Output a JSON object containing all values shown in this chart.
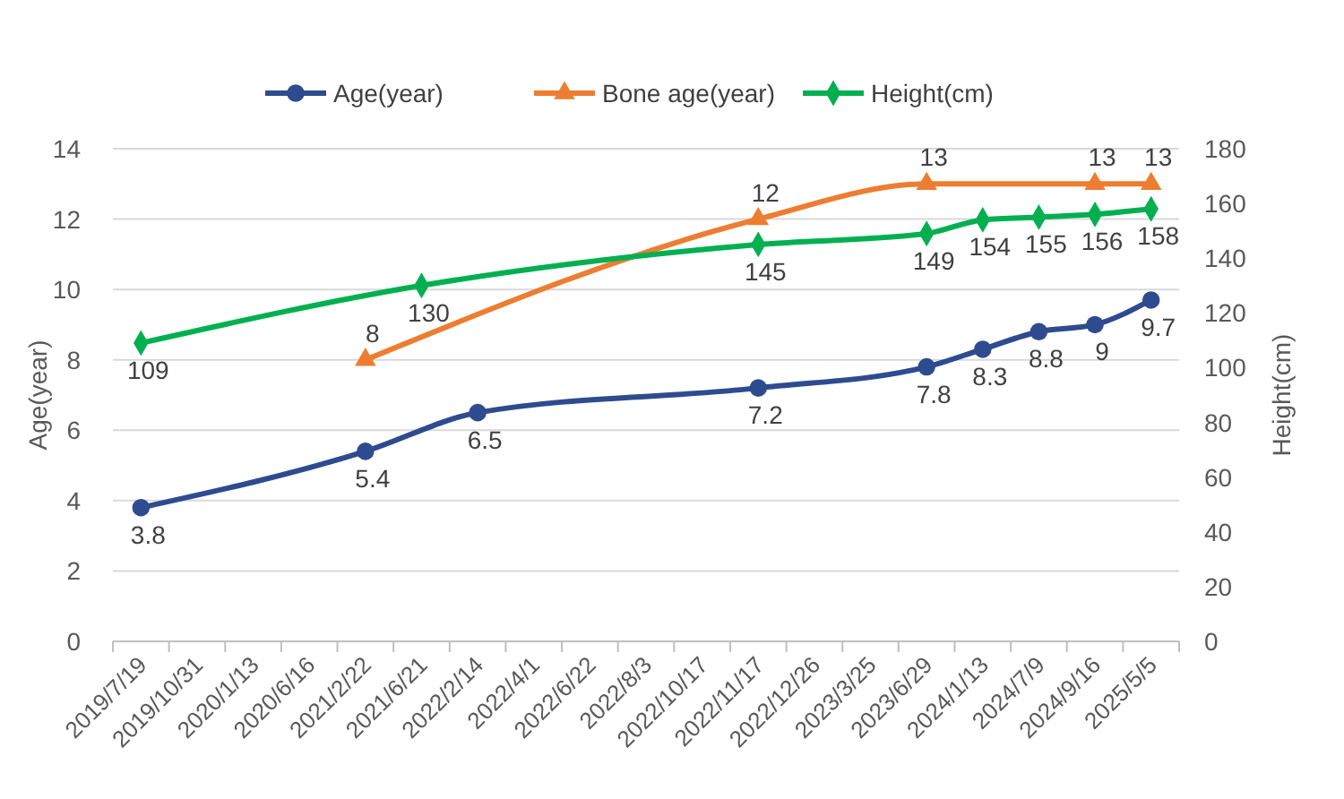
{
  "chart_data": {
    "type": "line",
    "ylabel": "Age(year)",
    "y2label": "Height(cm)",
    "categories": [
      "2019/7/19",
      "2019/10/31",
      "2020/1/13",
      "2020/6/16",
      "2021/2/22",
      "2021/6/21",
      "2022/2/14",
      "2022/4/1",
      "2022/6/22",
      "2022/8/3",
      "2022/10/17",
      "2022/11/17",
      "2022/12/26",
      "2023/3/25",
      "2023/6/29",
      "2024/1/13",
      "2024/7/9",
      "2024/9/16",
      "2025/5/5"
    ],
    "series": [
      {
        "name": "Age(year)",
        "color": "#2f4b8f",
        "marker": "circle",
        "values": [
          3.8,
          null,
          null,
          null,
          5.4,
          null,
          6.5,
          null,
          null,
          null,
          null,
          7.2,
          null,
          null,
          7.8,
          8.3,
          8.8,
          9,
          9.7
        ]
      },
      {
        "name": "Bone age(year)",
        "color": "#ed7d31",
        "marker": "triangle",
        "values": [
          null,
          null,
          null,
          null,
          8,
          null,
          null,
          null,
          null,
          null,
          null,
          12,
          null,
          null,
          13,
          null,
          null,
          13,
          13
        ]
      },
      {
        "name": "Height(cm)",
        "color": "#00b050",
        "marker": "diamond",
        "axis": "y2",
        "values": [
          109,
          null,
          null,
          null,
          null,
          130,
          null,
          null,
          null,
          null,
          null,
          145,
          null,
          null,
          149,
          154,
          155,
          156,
          158
        ]
      }
    ],
    "ylim": [
      0,
      14
    ],
    "yticks": [
      0,
      2,
      4,
      6,
      8,
      10,
      12,
      14
    ],
    "y2lim": [
      0,
      180
    ],
    "y2ticks": [
      0,
      20,
      40,
      60,
      80,
      100,
      120,
      140,
      160,
      180
    ],
    "grid": "y",
    "legend": "top",
    "data_labels": true
  }
}
